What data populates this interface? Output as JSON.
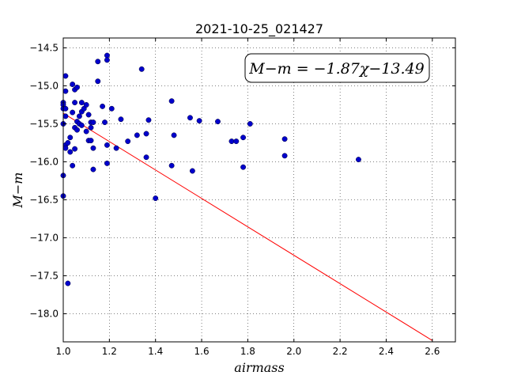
{
  "chart_data": {
    "type": "scatter",
    "title": "2021-10-25_021427",
    "xlabel": "airmass",
    "ylabel": "M−m",
    "xlim": [
      1.0,
      2.7
    ],
    "ylim": [
      -18.37,
      -14.37
    ],
    "y_inverted": true,
    "xticks": [
      "1.0",
      "1.2",
      "1.4",
      "1.6",
      "1.8",
      "2.0",
      "2.2",
      "2.4",
      "2.6"
    ],
    "xtick_values": [
      1.0,
      1.2,
      1.4,
      1.6,
      1.8,
      2.0,
      2.2,
      2.4,
      2.6
    ],
    "yticks": [
      "−14.5",
      "−15.0",
      "−15.5",
      "−16.0",
      "−16.5",
      "−17.0",
      "−17.5",
      "−18.0"
    ],
    "ytick_values": [
      -14.5,
      -15.0,
      -15.5,
      -16.0,
      -16.5,
      -17.0,
      -17.5,
      -18.0
    ],
    "grid": true,
    "annotation": "M−m = −1.87χ−13.49",
    "fit": {
      "slope": -1.87,
      "intercept": -13.49,
      "x_range": [
        1.0,
        2.6
      ],
      "color": "#ff0000"
    },
    "point_color": "#0000cc",
    "points": [
      [
        1.0,
        -15.22
      ],
      [
        1.0,
        -15.25
      ],
      [
        1.0,
        -15.3
      ],
      [
        1.0,
        -15.5
      ],
      [
        1.0,
        -16.18
      ],
      [
        1.0,
        -16.45
      ],
      [
        1.01,
        -14.87
      ],
      [
        1.01,
        -15.07
      ],
      [
        1.01,
        -15.3
      ],
      [
        1.01,
        -15.4
      ],
      [
        1.01,
        -15.78
      ],
      [
        1.01,
        -15.82
      ],
      [
        1.02,
        -15.75
      ],
      [
        1.02,
        -17.6
      ],
      [
        1.03,
        -15.68
      ],
      [
        1.03,
        -15.87
      ],
      [
        1.04,
        -14.98
      ],
      [
        1.04,
        -15.35
      ],
      [
        1.04,
        -16.05
      ],
      [
        1.05,
        -15.05
      ],
      [
        1.05,
        -15.22
      ],
      [
        1.05,
        -15.55
      ],
      [
        1.05,
        -15.83
      ],
      [
        1.06,
        -15.02
      ],
      [
        1.06,
        -15.47
      ],
      [
        1.06,
        -15.58
      ],
      [
        1.07,
        -15.4
      ],
      [
        1.07,
        -15.5
      ],
      [
        1.08,
        -15.22
      ],
      [
        1.08,
        -15.34
      ],
      [
        1.08,
        -15.52
      ],
      [
        1.09,
        -15.3
      ],
      [
        1.1,
        -15.25
      ],
      [
        1.1,
        -15.6
      ],
      [
        1.11,
        -15.38
      ],
      [
        1.11,
        -15.72
      ],
      [
        1.12,
        -15.48
      ],
      [
        1.12,
        -15.55
      ],
      [
        1.12,
        -15.72
      ],
      [
        1.13,
        -15.48
      ],
      [
        1.13,
        -15.82
      ],
      [
        1.13,
        -16.1
      ],
      [
        1.15,
        -14.68
      ],
      [
        1.15,
        -14.94
      ],
      [
        1.17,
        -15.27
      ],
      [
        1.18,
        -15.48
      ],
      [
        1.19,
        -14.6
      ],
      [
        1.19,
        -14.66
      ],
      [
        1.19,
        -15.78
      ],
      [
        1.19,
        -16.02
      ],
      [
        1.21,
        -15.3
      ],
      [
        1.23,
        -15.82
      ],
      [
        1.25,
        -15.44
      ],
      [
        1.28,
        -15.73
      ],
      [
        1.32,
        -15.65
      ],
      [
        1.34,
        -14.78
      ],
      [
        1.36,
        -15.63
      ],
      [
        1.36,
        -15.94
      ],
      [
        1.37,
        -15.45
      ],
      [
        1.4,
        -16.48
      ],
      [
        1.47,
        -15.2
      ],
      [
        1.47,
        -16.05
      ],
      [
        1.48,
        -15.65
      ],
      [
        1.55,
        -15.42
      ],
      [
        1.56,
        -16.12
      ],
      [
        1.59,
        -15.46
      ],
      [
        1.67,
        -15.47
      ],
      [
        1.73,
        -15.73
      ],
      [
        1.75,
        -15.73
      ],
      [
        1.78,
        -15.68
      ],
      [
        1.78,
        -16.07
      ],
      [
        1.81,
        -15.5
      ],
      [
        1.96,
        -15.7
      ],
      [
        1.96,
        -15.92
      ],
      [
        2.28,
        -15.97
      ]
    ]
  }
}
